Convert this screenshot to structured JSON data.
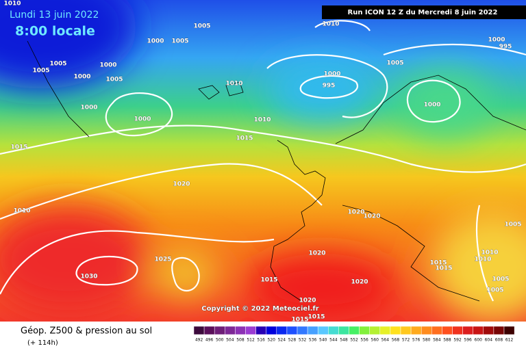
{
  "header": {
    "date": "Lundi 13 juin 2022",
    "time": "8:00 locale",
    "run": "Run ICON 12 Z du Mercredi 8 juin 2022"
  },
  "isobar_labels": [
    "1010",
    "1005",
    "1010",
    "1000",
    "1005",
    "1000",
    "995",
    "1005",
    "1005",
    "1000",
    "1000",
    "1005",
    "1010",
    "1000",
    "995",
    "1005",
    "1000",
    "1000",
    "1000",
    "1010",
    "1015",
    "1015",
    "1020",
    "1010",
    "1020",
    "1020",
    "1005",
    "1020",
    "1010",
    "1010",
    "1015",
    "1015",
    "1025",
    "1030",
    "1015",
    "1020",
    "1005",
    "1005",
    "1020",
    "1015",
    "1015"
  ],
  "copyright": "Copyright © 2022 Meteociel.fr",
  "footer": {
    "title": "Géop. Z500 & pression au sol",
    "lead": "(+ 114h)"
  },
  "scale": {
    "labels": [
      492,
      496,
      500,
      504,
      508,
      512,
      516,
      520,
      524,
      528,
      532,
      536,
      540,
      544,
      548,
      552,
      556,
      560,
      564,
      568,
      572,
      576,
      580,
      584,
      588,
      592,
      596,
      600,
      604,
      608,
      612
    ]
  }
}
